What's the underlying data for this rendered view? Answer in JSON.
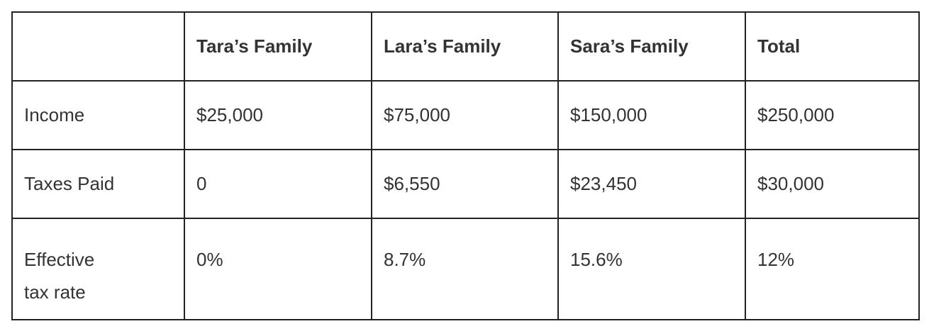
{
  "table": {
    "headers": [
      "",
      "Tara’s Family",
      "Lara’s Family",
      "Sara’s Family",
      "Total"
    ],
    "rows": [
      {
        "label": "Income",
        "values": [
          "$25,000",
          "$75,000",
          "$150,000",
          "$250,000"
        ]
      },
      {
        "label": "Taxes Paid",
        "values": [
          "0",
          "$6,550",
          "$23,450",
          "$30,000"
        ]
      },
      {
        "label_lines": [
          "Effective",
          "tax rate"
        ],
        "values": [
          "0%",
          "8.7%",
          "15.6%",
          "12%"
        ]
      }
    ]
  }
}
